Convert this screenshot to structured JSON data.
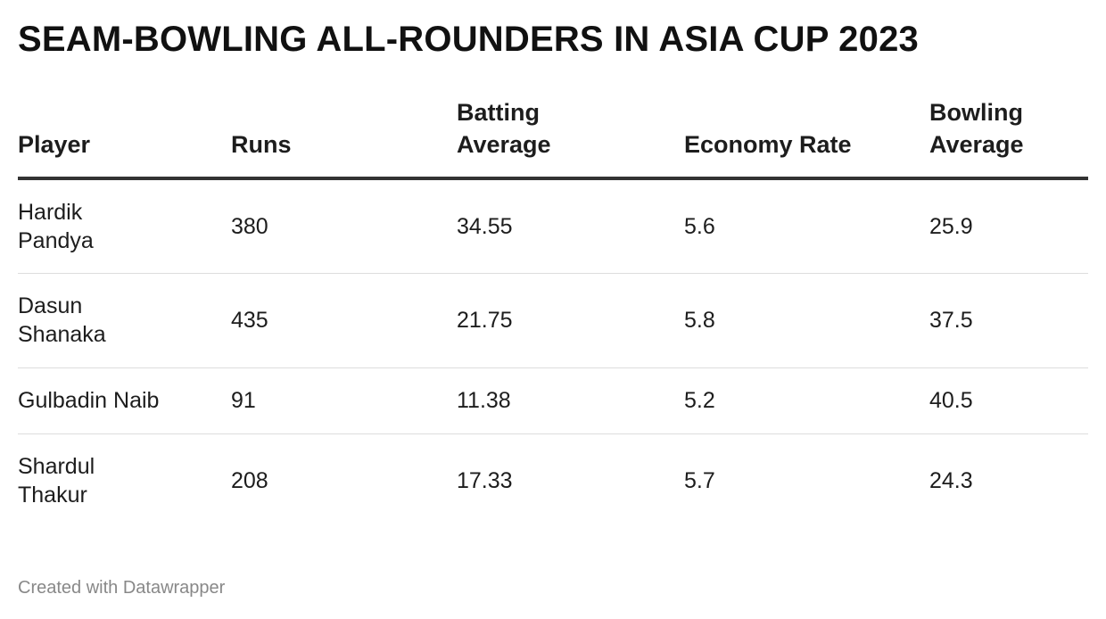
{
  "chart_data": {
    "type": "table",
    "title": "SEAM-BOWLING ALL-ROUNDERS IN ASIA CUP 2023",
    "columns": [
      "Player",
      "Runs",
      "Batting Average",
      "Economy Rate",
      "Bowling Average"
    ],
    "rows": [
      [
        "Hardik Pandya",
        "380",
        "34.55",
        "5.6",
        "25.9"
      ],
      [
        "Dasun Shanaka",
        "435",
        "21.75",
        "5.8",
        "37.5"
      ],
      [
        "Gulbadin Naib",
        "91",
        "11.38",
        "5.2",
        "40.5"
      ],
      [
        "Shardul Thakur",
        "208",
        "17.33",
        "5.7",
        "24.3"
      ]
    ],
    "footer": "Created with Datawrapper"
  }
}
